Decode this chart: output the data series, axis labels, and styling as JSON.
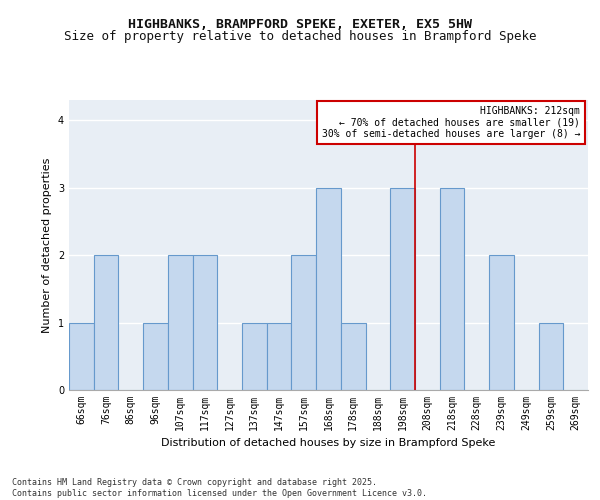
{
  "title1": "HIGHBANKS, BRAMPFORD SPEKE, EXETER, EX5 5HW",
  "title2": "Size of property relative to detached houses in Brampford Speke",
  "xlabel": "Distribution of detached houses by size in Brampford Speke",
  "ylabel": "Number of detached properties",
  "categories": [
    "66sqm",
    "76sqm",
    "86sqm",
    "96sqm",
    "107sqm",
    "117sqm",
    "127sqm",
    "137sqm",
    "147sqm",
    "157sqm",
    "168sqm",
    "178sqm",
    "188sqm",
    "198sqm",
    "208sqm",
    "218sqm",
    "228sqm",
    "239sqm",
    "249sqm",
    "259sqm",
    "269sqm"
  ],
  "values": [
    1,
    2,
    0,
    1,
    2,
    2,
    0,
    1,
    1,
    2,
    3,
    1,
    0,
    3,
    0,
    3,
    0,
    2,
    0,
    1,
    0
  ],
  "bar_color": "#c5d8ee",
  "bar_edge_color": "#6699cc",
  "vline_color": "#cc0000",
  "annotation_title": "HIGHBANKS: 212sqm",
  "annotation_line1": "← 70% of detached houses are smaller (19)",
  "annotation_line2": "30% of semi-detached houses are larger (8) →",
  "annotation_box_color": "#cc0000",
  "ylim": [
    0,
    4.3
  ],
  "yticks": [
    0,
    1,
    2,
    3,
    4
  ],
  "footer1": "Contains HM Land Registry data © Crown copyright and database right 2025.",
  "footer2": "Contains public sector information licensed under the Open Government Licence v3.0.",
  "bg_color": "#e8eef5",
  "grid_color": "#ffffff",
  "title_fontsize": 9.5,
  "subtitle_fontsize": 9,
  "axis_label_fontsize": 8,
  "tick_fontsize": 7,
  "annotation_fontsize": 7,
  "footer_fontsize": 6
}
